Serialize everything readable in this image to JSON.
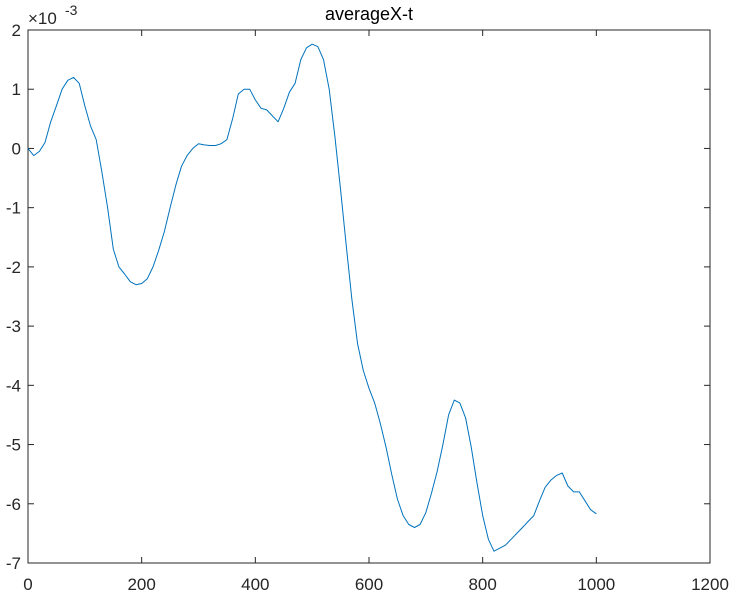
{
  "chart_data": {
    "type": "line",
    "title": "averageX-t",
    "xlabel": "",
    "ylabel": "",
    "xlim": [
      0,
      1200
    ],
    "ylim": [
      -7,
      2
    ],
    "y_exponent_base": "×10",
    "y_exponent_power": "-3",
    "x_ticks": [
      "0",
      "200",
      "400",
      "600",
      "800",
      "1000",
      "1200"
    ],
    "y_ticks": [
      "2",
      "1",
      "0",
      "-1",
      "-2",
      "-3",
      "-4",
      "-5",
      "-6",
      "-7"
    ],
    "grid": false,
    "line_color": "#0072bd",
    "series": [
      {
        "x": [
          0,
          10,
          20,
          30,
          40,
          50,
          60,
          70,
          80,
          90,
          100,
          110,
          120,
          130,
          140,
          150,
          160,
          170,
          180,
          190,
          200,
          210,
          220,
          230,
          240,
          250,
          260,
          270,
          280,
          290,
          300,
          310,
          320,
          330,
          340,
          350,
          360,
          370,
          380,
          390,
          400,
          410,
          420,
          430,
          440,
          450,
          460,
          470,
          480,
          490,
          500,
          510,
          520,
          530,
          540,
          550,
          560,
          570,
          580,
          590,
          600,
          610,
          620,
          630,
          640,
          650,
          660,
          670,
          680,
          690,
          700,
          710,
          720,
          730,
          740,
          750,
          760,
          770,
          780,
          790,
          800,
          810,
          820,
          830,
          840,
          850,
          860,
          870,
          880,
          890,
          900,
          910,
          920,
          930,
          940,
          950,
          960,
          970,
          980,
          990,
          1000
        ],
        "y": [
          0.0,
          -0.12,
          -0.05,
          0.1,
          0.45,
          0.72,
          1.0,
          1.15,
          1.2,
          1.1,
          0.72,
          0.38,
          0.15,
          -0.4,
          -1.0,
          -1.7,
          -2.0,
          -2.12,
          -2.25,
          -2.3,
          -2.28,
          -2.2,
          -2.0,
          -1.72,
          -1.4,
          -1.0,
          -0.62,
          -0.3,
          -0.12,
          0.0,
          0.08,
          0.06,
          0.05,
          0.05,
          0.08,
          0.15,
          0.5,
          0.92,
          1.0,
          1.0,
          0.82,
          0.68,
          0.65,
          0.55,
          0.45,
          0.68,
          0.95,
          1.1,
          1.5,
          1.7,
          1.76,
          1.72,
          1.5,
          1.0,
          0.2,
          -0.7,
          -1.65,
          -2.55,
          -3.3,
          -3.75,
          -4.05,
          -4.3,
          -4.65,
          -5.05,
          -5.5,
          -5.92,
          -6.2,
          -6.35,
          -6.4,
          -6.35,
          -6.15,
          -5.82,
          -5.45,
          -5.0,
          -4.5,
          -4.25,
          -4.3,
          -4.55,
          -5.05,
          -5.65,
          -6.2,
          -6.6,
          -6.8,
          -6.75,
          -6.7,
          -6.6,
          -6.5,
          -6.4,
          -6.3,
          -6.2,
          -5.95,
          -5.72,
          -5.6,
          -5.52,
          -5.48,
          -5.7,
          -5.8,
          -5.8,
          -5.95,
          -6.1,
          -6.17
        ]
      }
    ]
  }
}
